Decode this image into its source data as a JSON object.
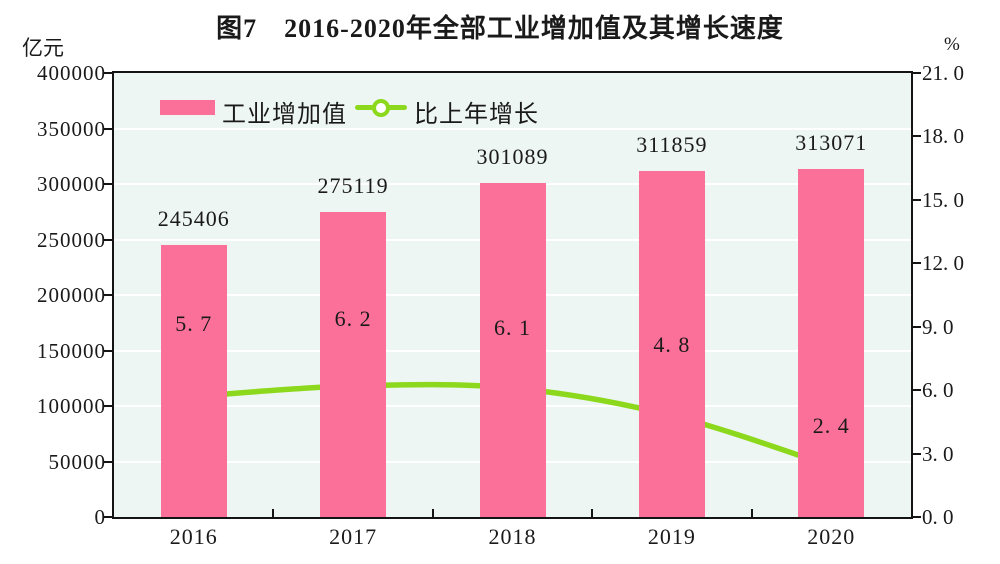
{
  "title": "图7　2016-2020年全部工业增加值及其增长速度",
  "left_axis": {
    "unit": "亿元",
    "tick_labels": [
      "400000",
      "350000",
      "300000",
      "250000",
      "200000",
      "150000",
      "100000",
      "50000",
      "0"
    ]
  },
  "right_axis": {
    "unit": "%",
    "tick_labels": [
      "21. 0",
      "18. 0",
      "15. 0",
      "12. 0",
      "9. 0",
      "6. 0",
      "3. 0",
      "0. 0"
    ]
  },
  "legend": [
    {
      "label": "工业增加值",
      "type": "bar"
    },
    {
      "label": "比上年增长",
      "type": "line"
    }
  ],
  "chart_data": {
    "type": "bar",
    "categories": [
      "2016",
      "2017",
      "2018",
      "2019",
      "2020"
    ],
    "series": [
      {
        "name": "工业增加值",
        "type": "bar",
        "axis": "left",
        "values": [
          245406,
          275119,
          301089,
          311859,
          313071
        ],
        "value_labels": [
          "245406",
          "275119",
          "301089",
          "311859",
          "313071"
        ]
      },
      {
        "name": "比上年增长",
        "type": "line",
        "axis": "right",
        "values": [
          5.7,
          6.2,
          6.1,
          4.8,
          2.4
        ],
        "value_labels": [
          "5. 7",
          "6. 2",
          "6. 1",
          "4. 8",
          "2. 4"
        ],
        "label_dy": [
          -72,
          -67,
          -60,
          -71,
          -40
        ]
      }
    ],
    "left_ylim": [
      0,
      400000
    ],
    "right_ylim": [
      0,
      21
    ],
    "grid": true,
    "legend_position": "top-left-inside"
  },
  "colors": {
    "bar": "#FB7099",
    "line": "#8CD81C",
    "marker_fill": "#FFFFFF",
    "plot_bg": "#EEF6F3",
    "grid": "#FFFFFF",
    "axis": "#141414",
    "text": "#1A1A1A"
  }
}
